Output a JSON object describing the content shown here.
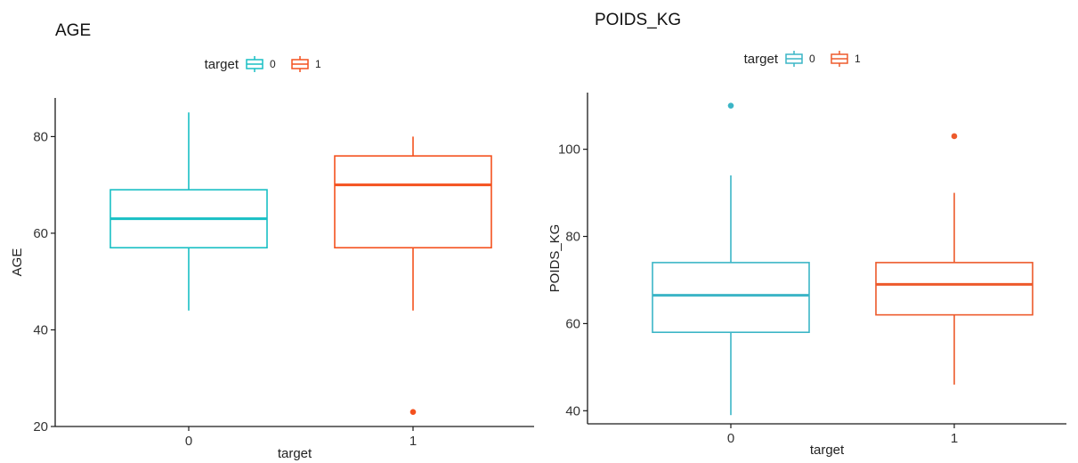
{
  "chart_data": [
    {
      "type": "box",
      "title": "AGE",
      "xlabel": "target",
      "ylabel": "AGE",
      "categories": [
        "0",
        "1"
      ],
      "ylim": [
        20,
        88
      ],
      "yticks": [
        20,
        40,
        60,
        80
      ],
      "legend": {
        "title": "target",
        "labels": [
          "0",
          "1"
        ],
        "position": "top"
      },
      "grid": false,
      "series": [
        {
          "name": "0",
          "color": "#18bfc4",
          "min": 44,
          "q1": 57,
          "median": 63,
          "q3": 69,
          "max": 85,
          "outliers": []
        },
        {
          "name": "1",
          "color": "#f4511e",
          "min": 44,
          "q1": 57,
          "median": 70,
          "q3": 76,
          "max": 80,
          "outliers": [
            23
          ]
        }
      ]
    },
    {
      "type": "box",
      "title": "POIDS_KG",
      "xlabel": "target",
      "ylabel": "POIDS_KG",
      "categories": [
        "0",
        "1"
      ],
      "ylim": [
        37,
        113
      ],
      "yticks": [
        40,
        60,
        80,
        100
      ],
      "legend": {
        "title": "target",
        "labels": [
          "0",
          "1"
        ],
        "position": "top"
      },
      "grid": false,
      "series": [
        {
          "name": "0",
          "color": "#3bb5c6",
          "min": 39,
          "q1": 58,
          "median": 66.5,
          "q3": 74,
          "max": 94,
          "outliers": [
            110
          ]
        },
        {
          "name": "1",
          "color": "#ed5a2b",
          "min": 46,
          "q1": 62,
          "median": 69,
          "q3": 74,
          "max": 90,
          "outliers": [
            103
          ]
        }
      ]
    }
  ]
}
